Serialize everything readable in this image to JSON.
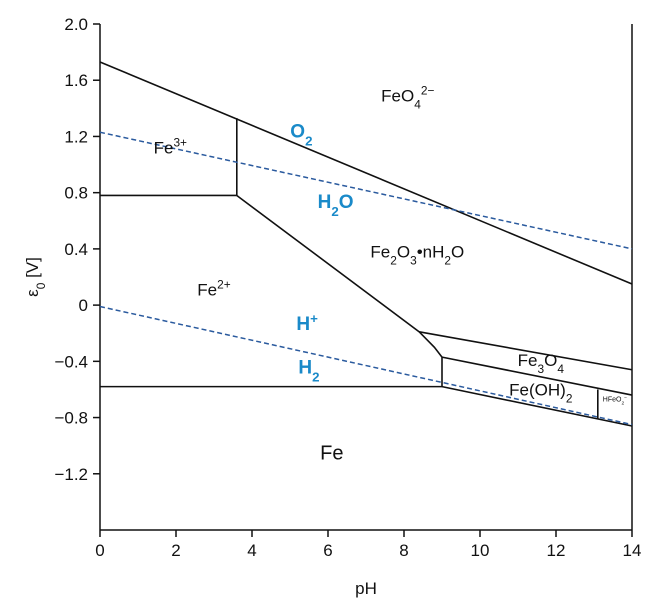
{
  "chart_data": {
    "type": "line",
    "x_label": "pH",
    "y_label_parts": [
      [
        "ε",
        ""
      ],
      [
        "0",
        "sub"
      ],
      [
        " [V]",
        ""
      ]
    ],
    "xlim": [
      0,
      14
    ],
    "xticks": [
      0,
      2,
      4,
      6,
      8,
      10,
      12,
      14
    ],
    "ylim": [
      -1.6,
      2.0
    ],
    "yticks": [
      {
        "value": 2,
        "label": "2.0"
      },
      1.6,
      1.2,
      0.8,
      0.4,
      0,
      {
        "value": -0.4,
        "label": "−0.4"
      },
      {
        "value": -0.8,
        "label": "−0.8"
      },
      {
        "value": -1.2,
        "label": "−1.2"
      }
    ],
    "grid": false,
    "series": [
      {
        "color": "#111111",
        "dashed": false,
        "x": [
          0,
          14
        ],
        "values": [
          1.73,
          0.15
        ]
      },
      {
        "color": "#111111",
        "dashed": false,
        "x": [
          3.6,
          3.6
        ],
        "values": [
          0.78,
          1.33
        ]
      },
      {
        "color": "#111111",
        "dashed": false,
        "x": [
          0,
          3.6
        ],
        "values": [
          0.78,
          0.78
        ]
      },
      {
        "color": "#111111",
        "dashed": false,
        "x": [
          3.6,
          8.4,
          8.8,
          9,
          9
        ],
        "values": [
          0.78,
          -0.19,
          -0.3,
          -0.37,
          -0.58
        ]
      },
      {
        "color": "#111111",
        "dashed": false,
        "x": [
          0,
          9
        ],
        "values": [
          -0.58,
          -0.58
        ]
      },
      {
        "color": "#111111",
        "dashed": false,
        "x": [
          8.4,
          14
        ],
        "values": [
          -0.19,
          -0.46
        ]
      },
      {
        "color": "#111111",
        "dashed": false,
        "x": [
          9,
          14
        ],
        "values": [
          -0.37,
          -0.64
        ]
      },
      {
        "color": "#111111",
        "dashed": false,
        "x": [
          9,
          14
        ],
        "values": [
          -0.58,
          -0.86
        ]
      },
      {
        "color": "#111111",
        "dashed": false,
        "x": [
          13.1,
          13.1
        ],
        "values": [
          -0.6,
          -0.81
        ]
      },
      {
        "color": "#2a5a9e",
        "dashed": true,
        "x": [
          0,
          14
        ],
        "values": [
          1.23,
          0.4
        ]
      },
      {
        "color": "#2a5a9e",
        "dashed": true,
        "x": [
          0,
          14
        ],
        "values": [
          -0.01,
          -0.85
        ]
      }
    ],
    "annotations": [
      {
        "x": 8.1,
        "y": 1.49,
        "color": "#111111",
        "bold": false,
        "size": 17,
        "parts": [
          [
            "FeO",
            ""
          ],
          [
            "4",
            "sub"
          ],
          [
            "2−",
            "sup"
          ]
        ]
      },
      {
        "x": 1.85,
        "y": 1.12,
        "color": "#111111",
        "bold": false,
        "size": 17,
        "parts": [
          [
            "Fe",
            ""
          ],
          [
            "3+",
            "sup"
          ]
        ]
      },
      {
        "x": 5.3,
        "y": 1.24,
        "color": "#1a8ac9",
        "bold": true,
        "size": 19,
        "parts": [
          [
            "O",
            ""
          ],
          [
            "2",
            "sub"
          ]
        ]
      },
      {
        "x": 6.2,
        "y": 0.74,
        "color": "#1a8ac9",
        "bold": true,
        "size": 19,
        "parts": [
          [
            "H",
            ""
          ],
          [
            "2",
            "sub"
          ],
          [
            "O",
            ""
          ]
        ]
      },
      {
        "x": 8.35,
        "y": 0.38,
        "color": "#111111",
        "bold": false,
        "size": 17,
        "parts": [
          [
            "Fe",
            ""
          ],
          [
            "2",
            "sub"
          ],
          [
            "O",
            ""
          ],
          [
            "3",
            "sub"
          ],
          [
            "•nH",
            ""
          ],
          [
            "2",
            "sub"
          ],
          [
            "O",
            ""
          ]
        ]
      },
      {
        "x": 3.0,
        "y": 0.11,
        "color": "#111111",
        "bold": false,
        "size": 17,
        "parts": [
          [
            "Fe",
            ""
          ],
          [
            "2+",
            "sup"
          ]
        ]
      },
      {
        "x": 5.45,
        "y": -0.13,
        "color": "#1a8ac9",
        "bold": true,
        "size": 19,
        "parts": [
          [
            "H",
            ""
          ],
          [
            "+",
            "sup"
          ]
        ]
      },
      {
        "x": 5.5,
        "y": -0.44,
        "color": "#1a8ac9",
        "bold": true,
        "size": 19,
        "parts": [
          [
            "H",
            ""
          ],
          [
            "2",
            "sub"
          ]
        ]
      },
      {
        "x": 11.6,
        "y": -0.39,
        "color": "#111111",
        "bold": false,
        "size": 17,
        "parts": [
          [
            "Fe",
            ""
          ],
          [
            "3",
            "sub"
          ],
          [
            "O",
            ""
          ],
          [
            "4",
            "sub"
          ]
        ]
      },
      {
        "x": 11.6,
        "y": -0.6,
        "color": "#111111",
        "bold": false,
        "size": 17,
        "parts": [
          [
            "Fe(OH)",
            ""
          ],
          [
            "2",
            "sub"
          ]
        ]
      },
      {
        "x": 13.55,
        "y": -0.67,
        "color": "#111111",
        "bold": false,
        "size": 7,
        "parts": [
          [
            "HFeO",
            ""
          ],
          [
            "2",
            "sub"
          ],
          [
            "−",
            "sup"
          ]
        ]
      },
      {
        "x": 6.1,
        "y": -1.05,
        "color": "#111111",
        "bold": false,
        "size": 20,
        "parts": [
          [
            "Fe",
            ""
          ]
        ]
      }
    ]
  }
}
